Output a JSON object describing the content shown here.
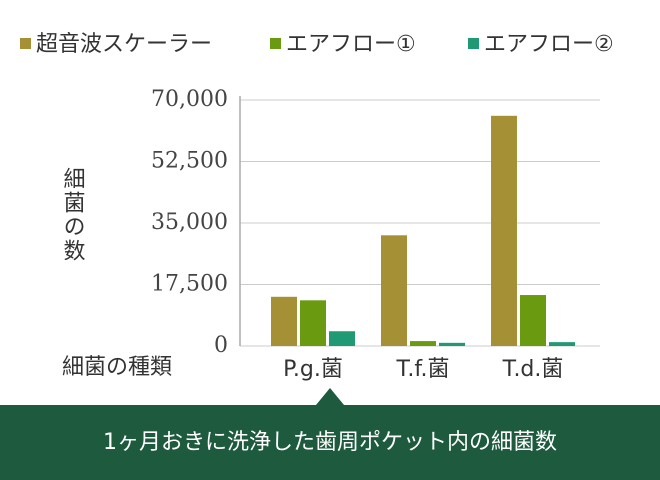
{
  "chart_data": {
    "type": "bar",
    "categories": [
      "P.g.菌",
      "T.f.菌",
      "T.d.菌"
    ],
    "series": [
      {
        "name": "超音波スケーラー",
        "color": "#a59036",
        "values": [
          14000,
          31500,
          65500
        ]
      },
      {
        "name": "エアフロー①",
        "color": "#6a9a10",
        "values": [
          13000,
          1400,
          14500
        ]
      },
      {
        "name": "エアフロー②",
        "color": "#1f9a74",
        "values": [
          4200,
          900,
          1100
        ]
      }
    ],
    "y_label": "細菌の数",
    "x_label": "細菌の種類",
    "caption": "1ヶ月おきに洗浄した歯周ポケット内の細菌数",
    "ylim": [
      0,
      70000
    ],
    "yticks": [
      0,
      {
        "value": 17500,
        "label": "17,500"
      },
      {
        "value": 35000,
        "label": "35,000"
      },
      {
        "value": 52500,
        "label": "52,500"
      },
      {
        "value": 70000,
        "label": "70,000"
      }
    ],
    "grid": true
  }
}
